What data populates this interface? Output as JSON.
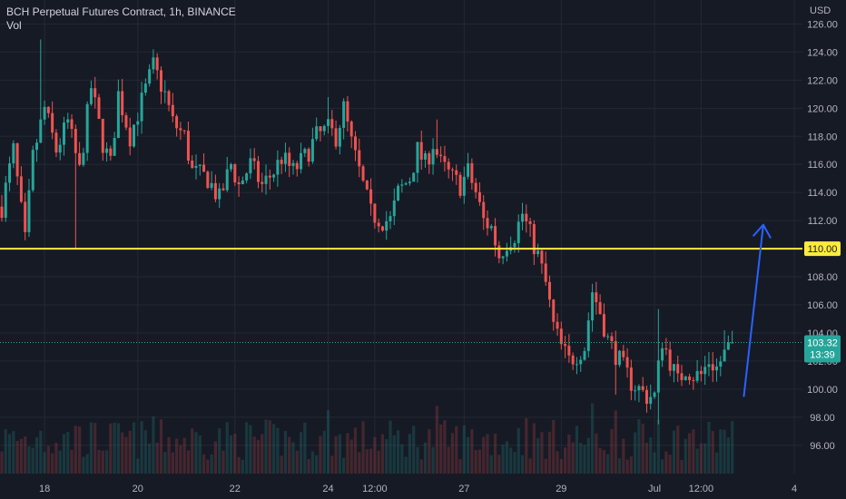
{
  "legend": {
    "title": "BCH Perpetual Futures Contract, 1h, BINANCE",
    "vol_label": "Vol"
  },
  "colors": {
    "background": "#161a25",
    "grid": "#232834",
    "axis_text": "#b2b5be",
    "up": "#26a69a",
    "down": "#ef5350",
    "level_line": "#ffeb3b",
    "arrow": "#2962ff",
    "last_price": "#26a69a"
  },
  "chart_data": {
    "type": "candlestick",
    "symbol": "BCH Perpetual Futures Contract",
    "interval": "1h",
    "exchange": "BINANCE",
    "currency_label": "USD",
    "ylim": [
      94.5,
      127
    ],
    "y_ticks": [
      "96.00",
      "98.00",
      "100.00",
      "102.00",
      "104.00",
      "106.00",
      "108.00",
      "110.00",
      "112.00",
      "114.00",
      "116.00",
      "118.00",
      "120.00",
      "122.00",
      "124.00",
      "126.00"
    ],
    "x_ticks": [
      "18",
      "20",
      "22",
      "24",
      "12:00",
      "27",
      "29",
      "Jul",
      "12:00",
      "4"
    ],
    "x_tick_slots": [
      11,
      35,
      60,
      84,
      96,
      119,
      144,
      168,
      180,
      204
    ],
    "total_slots": 215,
    "path_points": [
      [
        0,
        113
      ],
      [
        3,
        117
      ],
      [
        6,
        110.5
      ],
      [
        8,
        116.5
      ],
      [
        11,
        120
      ],
      [
        14,
        117
      ],
      [
        17,
        119
      ],
      [
        20,
        115.5
      ],
      [
        23,
        121.5
      ],
      [
        26,
        117.5
      ],
      [
        28,
        116
      ],
      [
        30,
        121
      ],
      [
        33,
        118
      ],
      [
        36,
        120.5
      ],
      [
        39,
        123
      ],
      [
        42,
        121
      ],
      [
        44,
        119
      ],
      [
        47,
        118
      ],
      [
        49,
        115.5
      ],
      [
        53,
        115
      ],
      [
        56,
        113.5
      ],
      [
        59,
        116
      ],
      [
        61,
        114.5
      ],
      [
        64,
        116
      ],
      [
        67,
        114.5
      ],
      [
        70,
        115.5
      ],
      [
        72,
        116.5
      ],
      [
        75,
        115.5
      ],
      [
        78,
        116.5
      ],
      [
        81,
        118
      ],
      [
        84,
        118.5
      ],
      [
        86,
        118
      ],
      [
        88,
        120
      ],
      [
        90,
        117.5
      ],
      [
        93,
        114.5
      ],
      [
        95,
        112.5
      ],
      [
        98,
        112
      ],
      [
        100,
        112
      ],
      [
        102,
        114
      ],
      [
        105,
        115
      ],
      [
        107,
        117
      ],
      [
        109,
        116
      ],
      [
        111,
        117.5
      ],
      [
        113,
        116
      ],
      [
        116,
        115
      ],
      [
        118,
        114.5
      ],
      [
        120,
        115.5
      ],
      [
        122,
        114
      ],
      [
        124,
        112
      ],
      [
        126,
        111.5
      ],
      [
        128,
        109.5
      ],
      [
        130,
        110.5
      ],
      [
        132,
        111
      ],
      [
        134,
        112.5
      ],
      [
        136,
        111
      ],
      [
        138,
        109.5
      ],
      [
        140,
        107.5
      ],
      [
        142,
        104.5
      ],
      [
        144,
        103
      ],
      [
        146,
        102
      ],
      [
        148,
        102.5
      ],
      [
        150,
        103
      ],
      [
        152,
        107
      ],
      [
        154,
        105.5
      ],
      [
        156,
        103.5
      ],
      [
        158,
        102.5
      ],
      [
        160,
        101.5
      ],
      [
        162,
        100.5
      ],
      [
        164,
        100
      ],
      [
        166,
        99.5
      ],
      [
        168,
        99.5
      ],
      [
        170,
        103.5
      ],
      [
        172,
        102
      ],
      [
        174,
        100.5
      ],
      [
        176,
        101.5
      ],
      [
        178,
        101
      ],
      [
        180,
        101
      ],
      [
        182,
        102
      ],
      [
        184,
        101.5
      ],
      [
        186,
        102.5
      ],
      [
        188,
        103.3
      ]
    ],
    "wick_spikes": [
      [
        10,
        124.9
      ],
      [
        19,
        110
      ],
      [
        39,
        124.2
      ],
      [
        84,
        120.8
      ],
      [
        112,
        119.2
      ],
      [
        135,
        112.3
      ],
      [
        152,
        107.5
      ],
      [
        158,
        99.6
      ],
      [
        169,
        105.7
      ],
      [
        169,
        97.5
      ],
      [
        186,
        104.2
      ]
    ],
    "last_price": "103.32",
    "countdown": "13:39",
    "horizontal_level": {
      "price": 110,
      "label": "110.00"
    },
    "arrow": {
      "from": [
        191,
        99.5
      ],
      "to": [
        196,
        111.7
      ]
    },
    "volume": {
      "approx_bars": 188
    }
  }
}
